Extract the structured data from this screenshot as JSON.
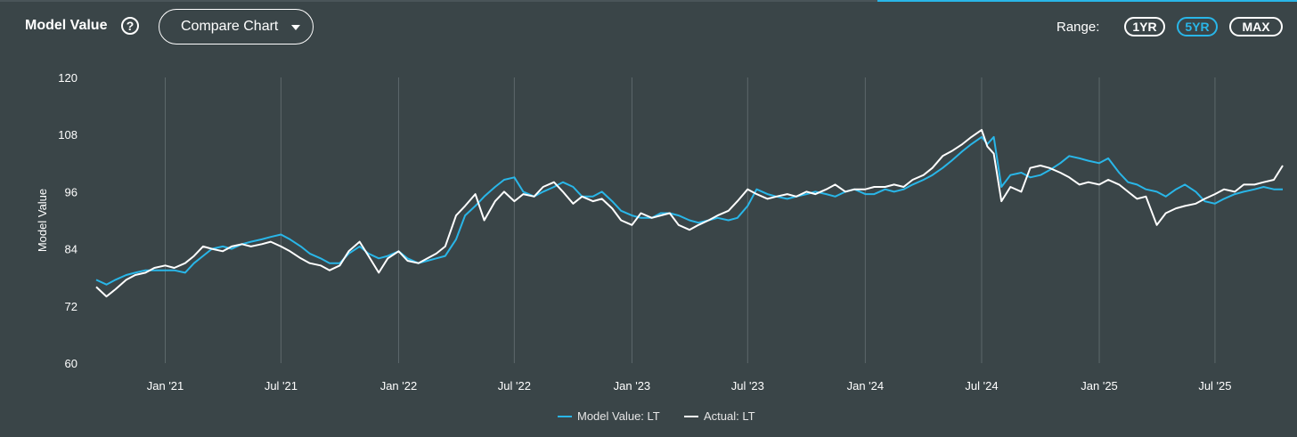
{
  "header": {
    "title": "Model Value",
    "help_symbol": "?",
    "compare_button": "Compare Chart",
    "range_label": "Range:",
    "ranges": [
      "1YR",
      "5YR",
      "MAX"
    ],
    "active_range": "5YR"
  },
  "colors": {
    "background": "#3a4548",
    "model": "#29b6e8",
    "actual": "#ffffff",
    "grid": "#5d686b",
    "accent": "#29b6e8"
  },
  "chart_data": {
    "type": "line",
    "ylabel": "Model Value",
    "xlabel": "",
    "ylim": [
      60,
      120
    ],
    "yticks": [
      60,
      72,
      84,
      96,
      108,
      120
    ],
    "xlim": [
      "2020-09-15",
      "2025-10-15"
    ],
    "xticks": [
      {
        "date": "2021-01-01",
        "label": "Jan '21"
      },
      {
        "date": "2021-07-01",
        "label": "Jul '21"
      },
      {
        "date": "2022-01-01",
        "label": "Jan '22"
      },
      {
        "date": "2022-07-01",
        "label": "Jul '22"
      },
      {
        "date": "2023-01-01",
        "label": "Jan '23"
      },
      {
        "date": "2023-07-01",
        "label": "Jul '23"
      },
      {
        "date": "2024-01-01",
        "label": "Jan '24"
      },
      {
        "date": "2024-07-01",
        "label": "Jul '24"
      },
      {
        "date": "2025-01-01",
        "label": "Jan '25"
      },
      {
        "date": "2025-07-01",
        "label": "Jul '25"
      }
    ],
    "grid": "vertical",
    "legend_position": "bottom-center",
    "series": [
      {
        "name": "Model Value: LT",
        "color": "#29b6e8",
        "points": [
          [
            "2020-09-15",
            77.5
          ],
          [
            "2020-10-01",
            76.5
          ],
          [
            "2020-10-15",
            77.5
          ],
          [
            "2020-11-01",
            78.5
          ],
          [
            "2020-11-15",
            79.0
          ],
          [
            "2020-12-01",
            79.5
          ],
          [
            "2020-12-15",
            79.5
          ],
          [
            "2021-01-01",
            79.5
          ],
          [
            "2021-01-15",
            79.5
          ],
          [
            "2021-02-01",
            79.0
          ],
          [
            "2021-02-15",
            81.0
          ],
          [
            "2021-03-01",
            82.5
          ],
          [
            "2021-03-15",
            84.0
          ],
          [
            "2021-04-01",
            84.5
          ],
          [
            "2021-04-15",
            84.0
          ],
          [
            "2021-05-01",
            85.0
          ],
          [
            "2021-05-15",
            85.5
          ],
          [
            "2021-06-01",
            86.0
          ],
          [
            "2021-06-15",
            86.5
          ],
          [
            "2021-07-01",
            87.0
          ],
          [
            "2021-07-15",
            86.0
          ],
          [
            "2021-08-01",
            84.5
          ],
          [
            "2021-08-15",
            83.0
          ],
          [
            "2021-09-01",
            82.0
          ],
          [
            "2021-09-15",
            81.0
          ],
          [
            "2021-10-01",
            81.0
          ],
          [
            "2021-10-15",
            83.0
          ],
          [
            "2021-11-01",
            84.5
          ],
          [
            "2021-11-15",
            83.0
          ],
          [
            "2021-12-01",
            82.0
          ],
          [
            "2021-12-15",
            82.5
          ],
          [
            "2022-01-01",
            83.5
          ],
          [
            "2022-01-15",
            82.0
          ],
          [
            "2022-02-01",
            81.0
          ],
          [
            "2022-02-15",
            81.5
          ],
          [
            "2022-03-01",
            82.0
          ],
          [
            "2022-03-15",
            82.5
          ],
          [
            "2022-04-01",
            86.0
          ],
          [
            "2022-04-15",
            91.0
          ],
          [
            "2022-05-01",
            93.0
          ],
          [
            "2022-05-15",
            95.0
          ],
          [
            "2022-06-01",
            97.0
          ],
          [
            "2022-06-15",
            98.5
          ],
          [
            "2022-07-01",
            99.0
          ],
          [
            "2022-07-15",
            96.0
          ],
          [
            "2022-08-01",
            95.0
          ],
          [
            "2022-08-15",
            96.0
          ],
          [
            "2022-09-01",
            97.0
          ],
          [
            "2022-09-15",
            98.0
          ],
          [
            "2022-10-01",
            97.0
          ],
          [
            "2022-10-15",
            95.0
          ],
          [
            "2022-11-01",
            95.0
          ],
          [
            "2022-11-15",
            96.0
          ],
          [
            "2022-12-01",
            94.0
          ],
          [
            "2022-12-15",
            92.0
          ],
          [
            "2023-01-01",
            91.0
          ],
          [
            "2023-01-15",
            90.5
          ],
          [
            "2023-02-01",
            90.5
          ],
          [
            "2023-02-15",
            91.5
          ],
          [
            "2023-03-01",
            91.5
          ],
          [
            "2023-03-15",
            91.0
          ],
          [
            "2023-04-01",
            90.0
          ],
          [
            "2023-04-15",
            89.5
          ],
          [
            "2023-05-01",
            90.0
          ],
          [
            "2023-05-15",
            90.5
          ],
          [
            "2023-06-01",
            90.0
          ],
          [
            "2023-06-15",
            90.5
          ],
          [
            "2023-07-01",
            93.0
          ],
          [
            "2023-07-15",
            96.5
          ],
          [
            "2023-08-01",
            95.5
          ],
          [
            "2023-08-15",
            95.0
          ],
          [
            "2023-09-01",
            94.5
          ],
          [
            "2023-09-15",
            95.0
          ],
          [
            "2023-10-01",
            95.5
          ],
          [
            "2023-10-15",
            96.0
          ],
          [
            "2023-11-01",
            95.5
          ],
          [
            "2023-11-15",
            95.0
          ],
          [
            "2023-12-01",
            96.0
          ],
          [
            "2023-12-15",
            96.5
          ],
          [
            "2024-01-01",
            95.5
          ],
          [
            "2024-01-15",
            95.5
          ],
          [
            "2024-02-01",
            96.5
          ],
          [
            "2024-02-15",
            96.0
          ],
          [
            "2024-03-01",
            96.5
          ],
          [
            "2024-03-15",
            97.5
          ],
          [
            "2024-04-01",
            98.5
          ],
          [
            "2024-04-15",
            99.5
          ],
          [
            "2024-05-01",
            101.0
          ],
          [
            "2024-05-15",
            102.5
          ],
          [
            "2024-06-01",
            104.5
          ],
          [
            "2024-06-15",
            106.0
          ],
          [
            "2024-07-01",
            107.5
          ],
          [
            "2024-07-10",
            106.0
          ],
          [
            "2024-07-20",
            107.5
          ],
          [
            "2024-08-01",
            97.0
          ],
          [
            "2024-08-15",
            99.5
          ],
          [
            "2024-09-01",
            100.0
          ],
          [
            "2024-09-15",
            99.0
          ],
          [
            "2024-10-01",
            99.5
          ],
          [
            "2024-10-15",
            100.5
          ],
          [
            "2024-11-01",
            102.0
          ],
          [
            "2024-11-15",
            103.5
          ],
          [
            "2024-12-01",
            103.0
          ],
          [
            "2024-12-15",
            102.5
          ],
          [
            "2025-01-01",
            102.0
          ],
          [
            "2025-01-15",
            103.0
          ],
          [
            "2025-02-01",
            100.0
          ],
          [
            "2025-02-15",
            98.0
          ],
          [
            "2025-03-01",
            97.5
          ],
          [
            "2025-03-15",
            96.5
          ],
          [
            "2025-04-01",
            96.0
          ],
          [
            "2025-04-15",
            95.0
          ],
          [
            "2025-05-01",
            96.5
          ],
          [
            "2025-05-15",
            97.5
          ],
          [
            "2025-06-01",
            96.0
          ],
          [
            "2025-06-15",
            94.0
          ],
          [
            "2025-07-01",
            93.5
          ],
          [
            "2025-07-15",
            94.5
          ],
          [
            "2025-08-01",
            95.5
          ],
          [
            "2025-08-15",
            96.0
          ],
          [
            "2025-09-01",
            96.5
          ],
          [
            "2025-09-15",
            97.0
          ],
          [
            "2025-10-01",
            96.5
          ],
          [
            "2025-10-15",
            96.5
          ]
        ]
      },
      {
        "name": "Actual: LT",
        "color": "#ffffff",
        "points": [
          [
            "2020-09-15",
            76.0
          ],
          [
            "2020-10-01",
            74.0
          ],
          [
            "2020-10-15",
            75.5
          ],
          [
            "2020-11-01",
            77.5
          ],
          [
            "2020-11-15",
            78.5
          ],
          [
            "2020-12-01",
            79.0
          ],
          [
            "2020-12-15",
            80.0
          ],
          [
            "2021-01-01",
            80.5
          ],
          [
            "2021-01-15",
            80.0
          ],
          [
            "2021-02-01",
            81.0
          ],
          [
            "2021-02-15",
            82.5
          ],
          [
            "2021-03-01",
            84.5
          ],
          [
            "2021-03-15",
            84.0
          ],
          [
            "2021-04-01",
            83.5
          ],
          [
            "2021-04-15",
            84.5
          ],
          [
            "2021-05-01",
            85.0
          ],
          [
            "2021-05-15",
            84.5
          ],
          [
            "2021-06-01",
            85.0
          ],
          [
            "2021-06-15",
            85.5
          ],
          [
            "2021-07-01",
            84.5
          ],
          [
            "2021-07-15",
            83.5
          ],
          [
            "2021-08-01",
            82.0
          ],
          [
            "2021-08-15",
            81.0
          ],
          [
            "2021-09-01",
            80.5
          ],
          [
            "2021-09-15",
            79.5
          ],
          [
            "2021-10-01",
            80.5
          ],
          [
            "2021-10-15",
            83.5
          ],
          [
            "2021-11-01",
            85.5
          ],
          [
            "2021-11-15",
            82.5
          ],
          [
            "2021-12-01",
            79.0
          ],
          [
            "2021-12-15",
            82.0
          ],
          [
            "2022-01-01",
            83.5
          ],
          [
            "2022-01-15",
            81.5
          ],
          [
            "2022-02-01",
            81.0
          ],
          [
            "2022-02-15",
            82.0
          ],
          [
            "2022-03-01",
            83.0
          ],
          [
            "2022-03-15",
            84.5
          ],
          [
            "2022-04-01",
            91.0
          ],
          [
            "2022-04-15",
            93.0
          ],
          [
            "2022-05-01",
            95.5
          ],
          [
            "2022-05-15",
            90.0
          ],
          [
            "2022-06-01",
            94.0
          ],
          [
            "2022-06-15",
            96.0
          ],
          [
            "2022-07-01",
            94.0
          ],
          [
            "2022-07-15",
            95.5
          ],
          [
            "2022-08-01",
            95.0
          ],
          [
            "2022-08-15",
            97.0
          ],
          [
            "2022-09-01",
            98.0
          ],
          [
            "2022-09-15",
            96.0
          ],
          [
            "2022-10-01",
            93.5
          ],
          [
            "2022-10-15",
            95.0
          ],
          [
            "2022-11-01",
            94.0
          ],
          [
            "2022-11-15",
            94.5
          ],
          [
            "2022-12-01",
            92.5
          ],
          [
            "2022-12-15",
            90.0
          ],
          [
            "2023-01-01",
            89.0
          ],
          [
            "2023-01-15",
            91.5
          ],
          [
            "2023-02-01",
            90.5
          ],
          [
            "2023-02-15",
            91.0
          ],
          [
            "2023-03-01",
            91.5
          ],
          [
            "2023-03-15",
            89.0
          ],
          [
            "2023-04-01",
            88.0
          ],
          [
            "2023-04-15",
            89.0
          ],
          [
            "2023-05-01",
            90.0
          ],
          [
            "2023-05-15",
            91.0
          ],
          [
            "2023-06-01",
            92.0
          ],
          [
            "2023-06-15",
            94.0
          ],
          [
            "2023-07-01",
            96.5
          ],
          [
            "2023-07-15",
            95.5
          ],
          [
            "2023-08-01",
            94.5
          ],
          [
            "2023-08-15",
            95.0
          ],
          [
            "2023-09-01",
            95.5
          ],
          [
            "2023-09-15",
            95.0
          ],
          [
            "2023-10-01",
            96.0
          ],
          [
            "2023-10-15",
            95.5
          ],
          [
            "2023-11-01",
            96.5
          ],
          [
            "2023-11-15",
            97.5
          ],
          [
            "2023-12-01",
            96.0
          ],
          [
            "2023-12-15",
            96.5
          ],
          [
            "2024-01-01",
            96.5
          ],
          [
            "2024-01-15",
            97.0
          ],
          [
            "2024-02-01",
            97.0
          ],
          [
            "2024-02-15",
            97.5
          ],
          [
            "2024-03-01",
            97.0
          ],
          [
            "2024-03-15",
            98.5
          ],
          [
            "2024-04-01",
            99.5
          ],
          [
            "2024-04-15",
            101.0
          ],
          [
            "2024-05-01",
            103.5
          ],
          [
            "2024-05-15",
            104.5
          ],
          [
            "2024-06-01",
            106.0
          ],
          [
            "2024-06-15",
            107.5
          ],
          [
            "2024-07-01",
            109.0
          ],
          [
            "2024-07-10",
            105.5
          ],
          [
            "2024-07-20",
            104.0
          ],
          [
            "2024-08-01",
            94.0
          ],
          [
            "2024-08-15",
            97.0
          ],
          [
            "2024-09-01",
            96.0
          ],
          [
            "2024-09-15",
            101.0
          ],
          [
            "2024-10-01",
            101.5
          ],
          [
            "2024-10-15",
            101.0
          ],
          [
            "2024-11-01",
            100.0
          ],
          [
            "2024-11-15",
            99.0
          ],
          [
            "2024-12-01",
            97.5
          ],
          [
            "2024-12-15",
            98.0
          ],
          [
            "2025-01-01",
            97.5
          ],
          [
            "2025-01-15",
            98.5
          ],
          [
            "2025-02-01",
            97.5
          ],
          [
            "2025-02-15",
            96.0
          ],
          [
            "2025-03-01",
            94.5
          ],
          [
            "2025-03-15",
            95.0
          ],
          [
            "2025-04-01",
            89.0
          ],
          [
            "2025-04-15",
            91.5
          ],
          [
            "2025-05-01",
            92.5
          ],
          [
            "2025-05-15",
            93.0
          ],
          [
            "2025-06-01",
            93.5
          ],
          [
            "2025-06-15",
            94.5
          ],
          [
            "2025-07-01",
            95.5
          ],
          [
            "2025-07-15",
            96.5
          ],
          [
            "2025-08-01",
            96.0
          ],
          [
            "2025-08-15",
            97.5
          ],
          [
            "2025-09-01",
            97.5
          ],
          [
            "2025-09-15",
            98.0
          ],
          [
            "2025-10-01",
            98.5
          ],
          [
            "2025-10-15",
            101.5
          ]
        ]
      }
    ]
  }
}
